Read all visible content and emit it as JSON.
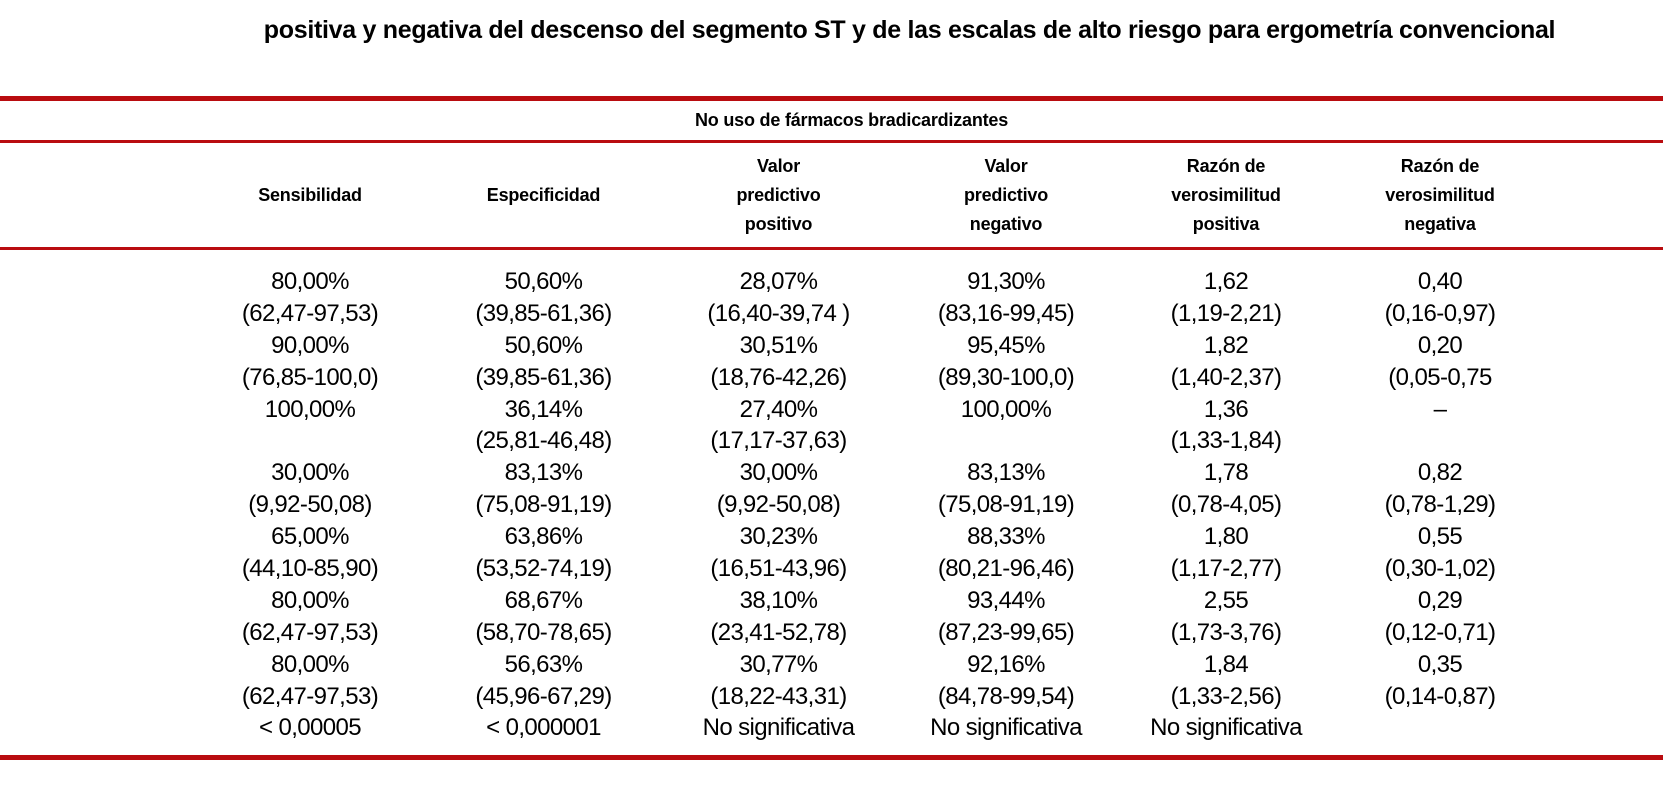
{
  "colors": {
    "rule_red": "#b90c10",
    "text": "#000000",
    "background": "#ffffff"
  },
  "title": "positiva y negativa del descenso del segmento ST y de las escalas de alto riesgo para ergometría convencional",
  "table": {
    "group_header": "No uso de fármacos bradicardizantes",
    "column_headers": [
      "",
      "Sensibilidad",
      "Especificidad",
      "Valor\npredictivo\npositivo",
      "Valor\npredictivo\nnegativo",
      "Razón de\nverosimilitud\npositiva",
      "Razón de\nverosimilitud\nnegativa"
    ],
    "rows": [
      [
        "",
        "80,00%",
        "50,60%",
        "28,07%",
        "91,30%",
        "1,62",
        "0,40"
      ],
      [
        "",
        "(62,47-97,53)",
        "(39,85-61,36)",
        "(16,40-39,74 )",
        "(83,16-99,45)",
        "(1,19-2,21)",
        "(0,16-0,97)"
      ],
      [
        "",
        "90,00%",
        "50,60%",
        "30,51%",
        "95,45%",
        "1,82",
        "0,20"
      ],
      [
        "",
        "(76,85-100,0)",
        "(39,85-61,36)",
        "(18,76-42,26)",
        "(89,30-100,0)",
        "(1,40-2,37)",
        "(0,05-0,75"
      ],
      [
        "",
        "100,00%",
        "36,14%",
        "27,40%",
        "100,00%",
        "1,36",
        "–"
      ],
      [
        "",
        "",
        "(25,81-46,48)",
        "(17,17-37,63)",
        "",
        "(1,33-1,84)",
        ""
      ],
      [
        "",
        "30,00%",
        "83,13%",
        "30,00%",
        "83,13%",
        "1,78",
        "0,82"
      ],
      [
        "",
        "(9,92-50,08)",
        "(75,08-91,19)",
        "(9,92-50,08)",
        "(75,08-91,19)",
        "(0,78-4,05)",
        "(0,78-1,29)"
      ],
      [
        "",
        "65,00%",
        "63,86%",
        "30,23%",
        "88,33%",
        "1,80",
        "0,55"
      ],
      [
        "",
        "(44,10-85,90)",
        "(53,52-74,19)",
        "(16,51-43,96)",
        "(80,21-96,46)",
        "(1,17-2,77)",
        "(0,30-1,02)"
      ],
      [
        "",
        "80,00%",
        "68,67%",
        "38,10%",
        "93,44%",
        "2,55",
        "0,29"
      ],
      [
        "",
        "(62,47-97,53)",
        "(58,70-78,65)",
        "(23,41-52,78)",
        "(87,23-99,65)",
        "(1,73-3,76)",
        "(0,12-0,71)"
      ],
      [
        "",
        "80,00%",
        "56,63%",
        "30,77%",
        "92,16%",
        "1,84",
        "0,35"
      ],
      [
        "",
        "(62,47-97,53)",
        "(45,96-67,29)",
        "(18,22-43,31)",
        "(84,78-99,54)",
        "(1,33-2,56)",
        "(0,14-0,87)"
      ],
      [
        "",
        "< 0,00005",
        "< 0,000001",
        "No significativa",
        "No significativa",
        "No significativa",
        ""
      ]
    ]
  }
}
